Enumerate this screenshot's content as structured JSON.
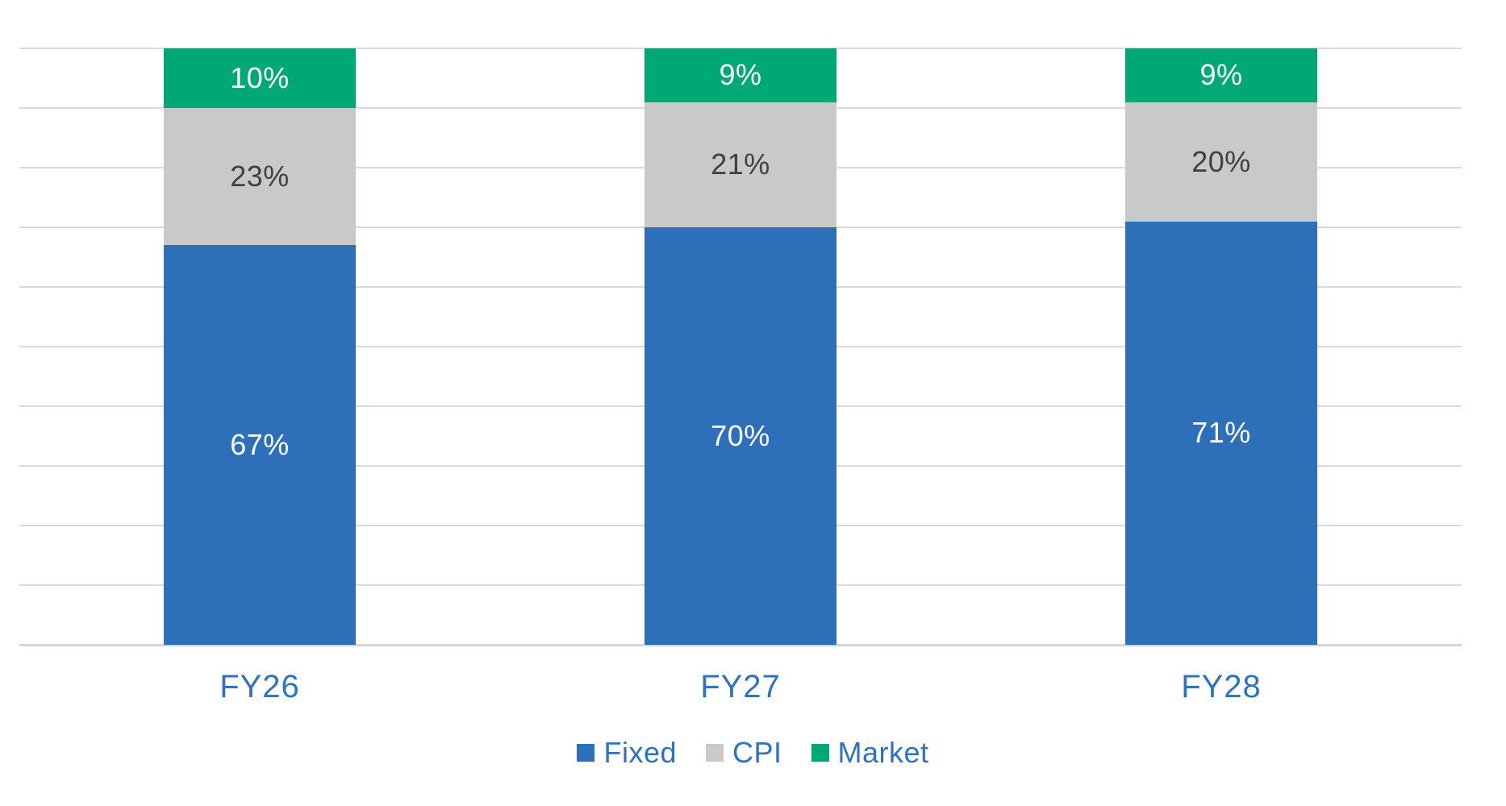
{
  "chart_data": {
    "type": "bar",
    "stacked": true,
    "orientation": "vertical",
    "title": "",
    "xlabel": "",
    "ylabel": "",
    "categories": [
      "FY26",
      "FY27",
      "FY28"
    ],
    "series": [
      {
        "name": "Fixed",
        "color": "#2D70B9",
        "label_color": "#FFFFFF",
        "values": [
          67,
          70,
          71
        ],
        "labels": [
          "67%",
          "70%",
          "71%"
        ]
      },
      {
        "name": "CPI",
        "color": "#C9C9C9",
        "label_color": "#404040",
        "values": [
          23,
          21,
          20
        ],
        "labels": [
          "23%",
          "21%",
          "20%"
        ]
      },
      {
        "name": "Market",
        "color": "#00A876",
        "label_color": "#FFFFFF",
        "values": [
          10,
          9,
          9
        ],
        "labels": [
          "10%",
          "9%",
          "9%"
        ]
      }
    ],
    "ylim": [
      0,
      100
    ],
    "ytick_step": 10,
    "y_tick_labels_visible": false,
    "gridlines": true,
    "gridline_color": "#DADADA",
    "axis_label_color": "#2F73BE",
    "legend_position": "bottom",
    "legend_text_color": "#2F73BE",
    "background_color": "#FFFFFF"
  }
}
